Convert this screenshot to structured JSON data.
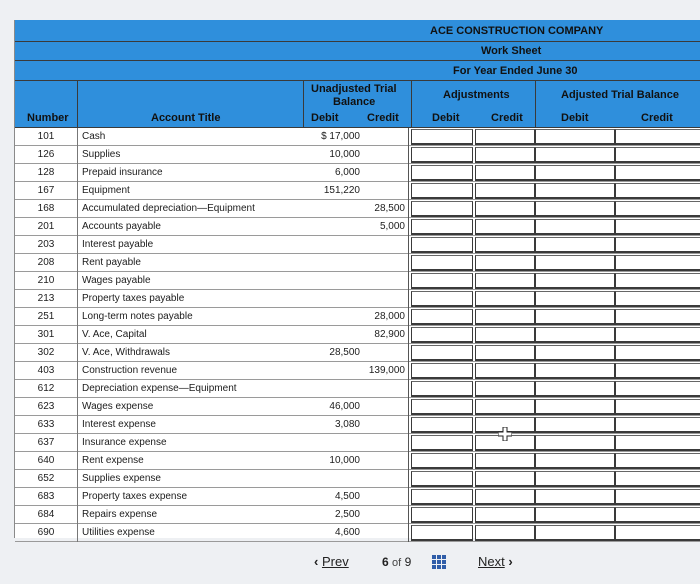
{
  "header": {
    "company": "ACE CONSTRUCTION COMPANY",
    "statement": "Work Sheet",
    "period": "For Year Ended June 30",
    "unadjusted_tb_line1": "Unadjusted Trial",
    "unadjusted_tb_line2": "Balance",
    "adjustments": "Adjustments",
    "adjusted_tb": "Adjusted Trial Balance",
    "col_number": "Number",
    "col_account": "Account Title",
    "col_debit": "Debit",
    "col_credit": "Credit"
  },
  "rows": [
    {
      "number": "101",
      "title": "Cash",
      "debit": "$ 17,000",
      "credit": ""
    },
    {
      "number": "126",
      "title": "Supplies",
      "debit": "10,000",
      "credit": ""
    },
    {
      "number": "128",
      "title": "Prepaid insurance",
      "debit": "6,000",
      "credit": ""
    },
    {
      "number": "167",
      "title": "Equipment",
      "debit": "151,220",
      "credit": ""
    },
    {
      "number": "168",
      "title": "Accumulated depreciation—Equipment",
      "debit": "",
      "credit": "28,500"
    },
    {
      "number": "201",
      "title": "Accounts payable",
      "debit": "",
      "credit": "5,000"
    },
    {
      "number": "203",
      "title": "Interest payable",
      "debit": "",
      "credit": ""
    },
    {
      "number": "208",
      "title": "Rent payable",
      "debit": "",
      "credit": ""
    },
    {
      "number": "210",
      "title": "Wages payable",
      "debit": "",
      "credit": ""
    },
    {
      "number": "213",
      "title": "Property taxes payable",
      "debit": "",
      "credit": ""
    },
    {
      "number": "251",
      "title": "Long-term notes payable",
      "debit": "",
      "credit": "28,000"
    },
    {
      "number": "301",
      "title": "V. Ace, Capital",
      "debit": "",
      "credit": "82,900"
    },
    {
      "number": "302",
      "title": "V. Ace, Withdrawals",
      "debit": "28,500",
      "credit": ""
    },
    {
      "number": "403",
      "title": "Construction revenue",
      "debit": "",
      "credit": "139,000"
    },
    {
      "number": "612",
      "title": "Depreciation expense—Equipment",
      "debit": "",
      "credit": ""
    },
    {
      "number": "623",
      "title": "Wages expense",
      "debit": "46,000",
      "credit": ""
    },
    {
      "number": "633",
      "title": "Interest expense",
      "debit": "3,080",
      "credit": ""
    },
    {
      "number": "637",
      "title": "Insurance expense",
      "debit": "",
      "credit": ""
    },
    {
      "number": "640",
      "title": "Rent expense",
      "debit": "10,000",
      "credit": ""
    },
    {
      "number": "652",
      "title": "Supplies expense",
      "debit": "",
      "credit": ""
    },
    {
      "number": "683",
      "title": "Property taxes expense",
      "debit": "4,500",
      "credit": ""
    },
    {
      "number": "684",
      "title": "Repairs expense",
      "debit": "2,500",
      "credit": ""
    },
    {
      "number": "690",
      "title": "Utilities expense",
      "debit": "4,600",
      "credit": ""
    }
  ],
  "nav": {
    "prev_label": "Prev",
    "page_current": "6",
    "page_of": "of",
    "page_total": "9",
    "next_label": "Next",
    "prev_icon": "chevron-left-icon",
    "next_icon": "chevron-right-icon",
    "grid_icon": "grid-icon"
  },
  "colors": {
    "header_blue": "#2f8fdc",
    "nav_icon_blue": "#2f5da8"
  }
}
